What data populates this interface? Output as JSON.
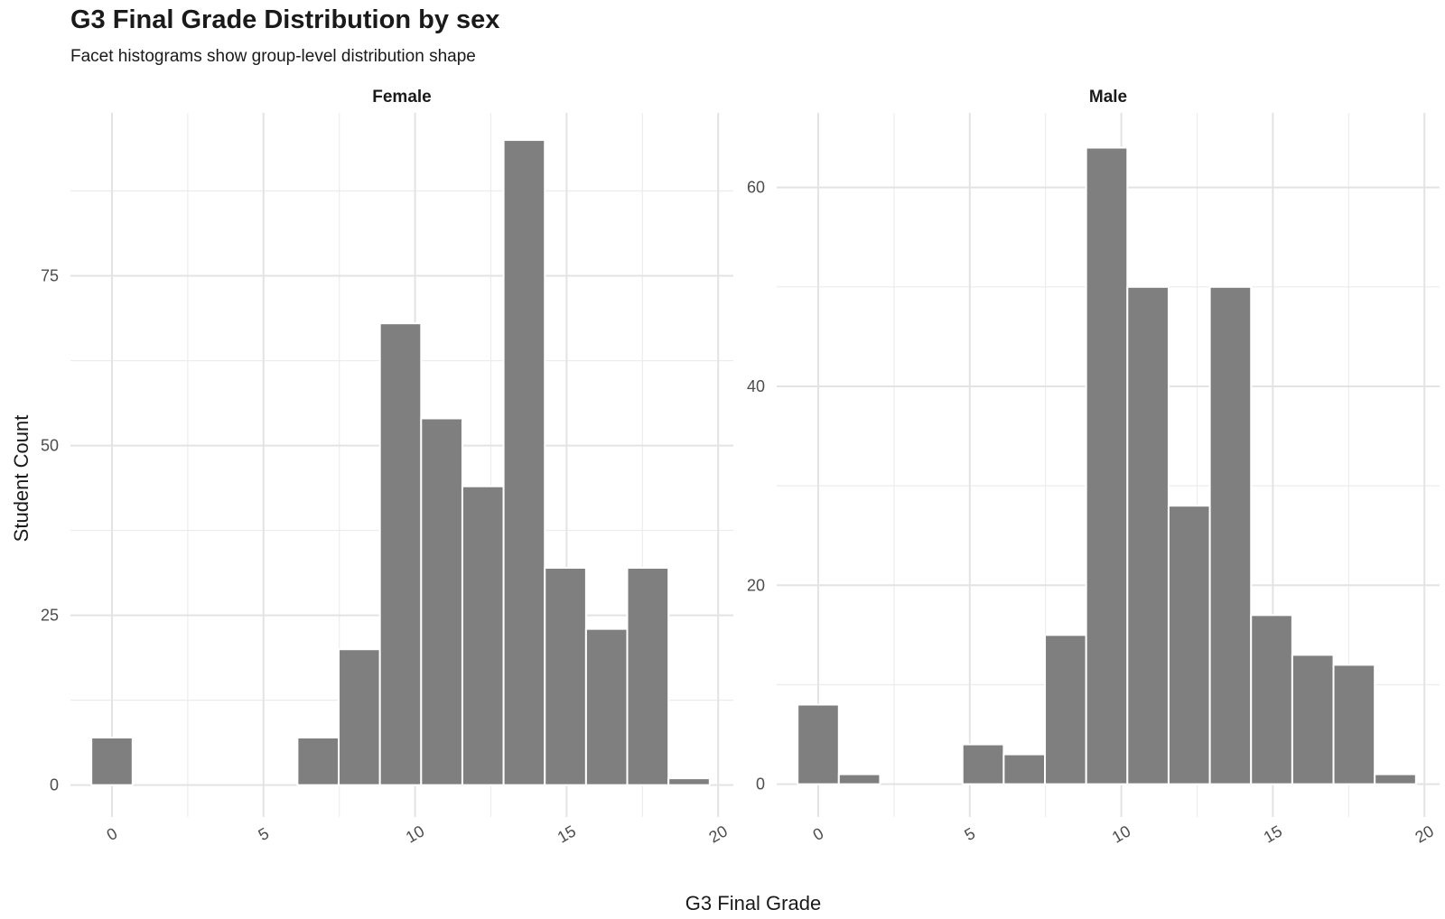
{
  "chart_data": {
    "type": "bar",
    "title": "G3 Final Grade Distribution by sex",
    "subtitle": "Facet histograms show group-level distribution shape",
    "xlabel": "G3 Final Grade",
    "ylabel": "Student Count",
    "grid": true,
    "bar_color": "#7f7f7f",
    "x_ticks": [
      0,
      5,
      10,
      15,
      20
    ],
    "panels": [
      {
        "name": "Female",
        "xlim": [
          -1.37,
          20.5
        ],
        "ylim": [
          -4.7,
          99
        ],
        "y_ticks": [
          0,
          25,
          50,
          75
        ],
        "bins": [
          {
            "x0": -0.68,
            "x1": 0.68,
            "value": 7
          },
          {
            "x0": 6.12,
            "x1": 7.48,
            "value": 7
          },
          {
            "x0": 7.48,
            "x1": 8.84,
            "value": 20
          },
          {
            "x0": 8.84,
            "x1": 10.2,
            "value": 68
          },
          {
            "x0": 10.2,
            "x1": 11.56,
            "value": 54
          },
          {
            "x0": 11.56,
            "x1": 12.92,
            "value": 44
          },
          {
            "x0": 12.92,
            "x1": 14.28,
            "value": 95
          },
          {
            "x0": 14.28,
            "x1": 15.64,
            "value": 32
          },
          {
            "x0": 15.64,
            "x1": 17.0,
            "value": 23
          },
          {
            "x0": 17.0,
            "x1": 18.36,
            "value": 32
          },
          {
            "x0": 18.36,
            "x1": 19.72,
            "value": 1
          }
        ]
      },
      {
        "name": "Male",
        "xlim": [
          -1.37,
          20.5
        ],
        "ylim": [
          -3.3,
          67.5
        ],
        "y_ticks": [
          0,
          20,
          40,
          60
        ],
        "bins": [
          {
            "x0": -0.68,
            "x1": 0.68,
            "value": 8
          },
          {
            "x0": 0.68,
            "x1": 2.04,
            "value": 1
          },
          {
            "x0": 4.76,
            "x1": 6.12,
            "value": 4
          },
          {
            "x0": 6.12,
            "x1": 7.48,
            "value": 3
          },
          {
            "x0": 7.48,
            "x1": 8.84,
            "value": 15
          },
          {
            "x0": 8.84,
            "x1": 10.2,
            "value": 64
          },
          {
            "x0": 10.2,
            "x1": 11.56,
            "value": 50
          },
          {
            "x0": 11.56,
            "x1": 12.92,
            "value": 28
          },
          {
            "x0": 12.92,
            "x1": 14.28,
            "value": 50
          },
          {
            "x0": 14.28,
            "x1": 15.64,
            "value": 17
          },
          {
            "x0": 15.64,
            "x1": 17.0,
            "value": 13
          },
          {
            "x0": 17.0,
            "x1": 18.36,
            "value": 12
          },
          {
            "x0": 18.36,
            "x1": 19.72,
            "value": 1
          }
        ]
      }
    ]
  }
}
